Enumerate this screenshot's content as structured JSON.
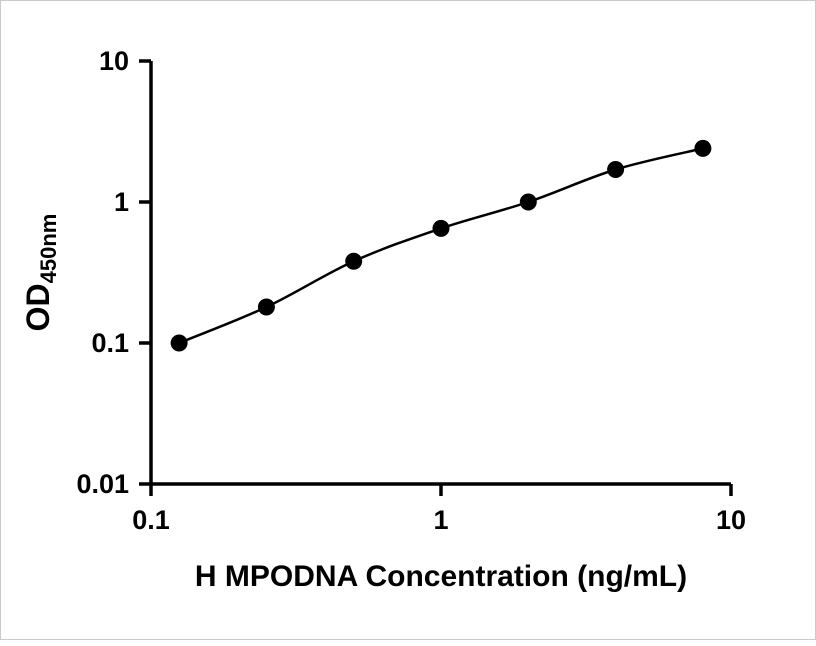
{
  "chart_data": {
    "type": "scatter",
    "title": "",
    "xlabel": "H MPODNA Concentration (ng/mL)",
    "ylabel_main": "OD",
    "ylabel_sub": "450nm",
    "xscale": "log",
    "yscale": "log",
    "xlim": [
      0.1,
      10
    ],
    "ylim": [
      0.01,
      10
    ],
    "x": [
      0.125,
      0.25,
      0.5,
      1,
      2,
      4,
      8
    ],
    "y": [
      0.1,
      0.18,
      0.38,
      0.65,
      1.0,
      1.7,
      2.4
    ],
    "x_ticks": [
      0.1,
      1,
      10
    ],
    "x_tick_labels": [
      "0.1",
      "1",
      "10"
    ],
    "y_ticks": [
      0.01,
      0.1,
      1,
      10
    ],
    "y_tick_labels": [
      "0.01",
      "0.1",
      "1",
      "10"
    ],
    "grid": false,
    "legend": "none",
    "line_color": "#000000",
    "marker_color": "#000000",
    "axis_color": "#000000"
  }
}
